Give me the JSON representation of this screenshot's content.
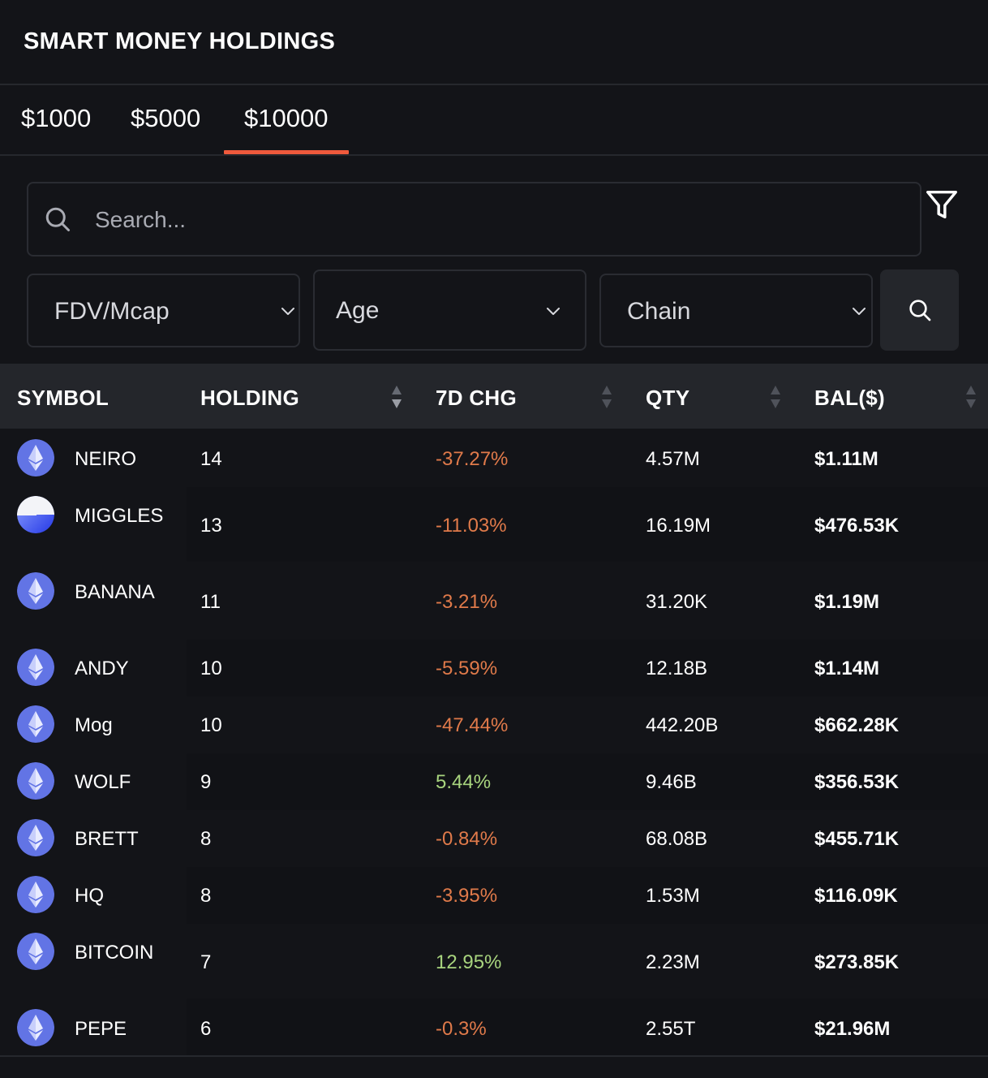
{
  "header": {
    "title": "SMART MONEY HOLDINGS"
  },
  "tabs": [
    {
      "label": "$1000"
    },
    {
      "label": "$5000"
    },
    {
      "label": "$10000",
      "active": true
    }
  ],
  "search": {
    "placeholder": "Search...",
    "value": ""
  },
  "filters": [
    {
      "label": "FDV/Mcap"
    },
    {
      "label": "Age"
    },
    {
      "label": "Chain"
    }
  ],
  "table": {
    "columns": [
      "SYMBOL",
      "HOLDING",
      "7D CHG",
      "QTY",
      "BAL($)"
    ],
    "rows": [
      {
        "symbol": "NEIRO",
        "holding": "14",
        "chg": "-37.27%",
        "qty": "4.57M",
        "bal": "$1.11M",
        "icon": "ethereum-icon"
      },
      {
        "symbol": "MIGGLES",
        "holding": "13",
        "chg": "-11.03%",
        "qty": "16.19M",
        "bal": "$476.53K",
        "icon": "token-icon"
      },
      {
        "symbol": "BANANA",
        "holding": "11",
        "chg": "-3.21%",
        "qty": "31.20K",
        "bal": "$1.19M",
        "icon": "ethereum-icon"
      },
      {
        "symbol": "ANDY",
        "holding": "10",
        "chg": "-5.59%",
        "qty": "12.18B",
        "bal": "$1.14M",
        "icon": "ethereum-icon"
      },
      {
        "symbol": "Mog",
        "holding": "10",
        "chg": "-47.44%",
        "qty": "442.20B",
        "bal": "$662.28K",
        "icon": "ethereum-icon"
      },
      {
        "symbol": "WOLF",
        "holding": "9",
        "chg": "5.44%",
        "qty": "9.46B",
        "bal": "$356.53K",
        "icon": "ethereum-icon"
      },
      {
        "symbol": "BRETT",
        "holding": "8",
        "chg": "-0.84%",
        "qty": "68.08B",
        "bal": "$455.71K",
        "icon": "ethereum-icon"
      },
      {
        "symbol": "HQ",
        "holding": "8",
        "chg": "-3.95%",
        "qty": "1.53M",
        "bal": "$116.09K",
        "icon": "ethereum-icon"
      },
      {
        "symbol": "BITCOIN",
        "holding": "7",
        "chg": "12.95%",
        "qty": "2.23M",
        "bal": "$273.85K",
        "icon": "ethereum-icon"
      },
      {
        "symbol": "PEPE",
        "holding": "6",
        "chg": "-0.3%",
        "qty": "2.55T",
        "bal": "$21.96M",
        "icon": "ethereum-icon"
      }
    ]
  },
  "colors": {
    "accent": "#ef5a3c",
    "negative": "#e07a4a",
    "positive": "#a8d47e",
    "background": "#131418",
    "header_row": "#24262b"
  }
}
